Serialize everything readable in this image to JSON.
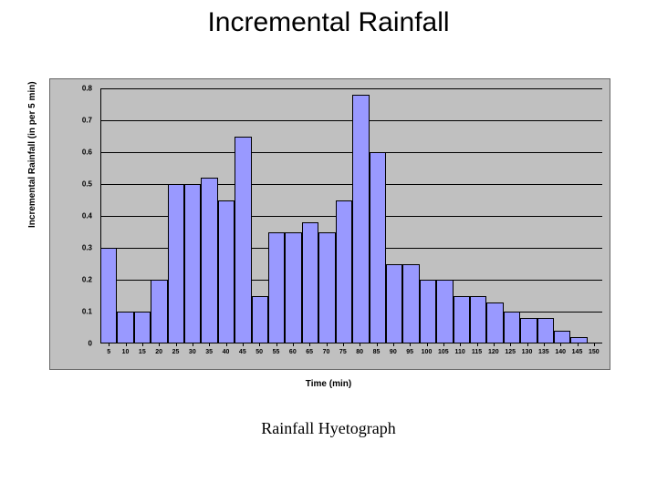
{
  "title": "Incremental Rainfall",
  "caption": "Rainfall Hyetograph",
  "chart": {
    "type": "bar",
    "xlabel": "Time (min)",
    "ylabel": "Incremental Rainfall (in per 5 min)",
    "ylim": [
      0,
      0.8
    ],
    "ytick_step": 0.1,
    "yticks": [
      "0",
      "0.1",
      "0.2",
      "0.3",
      "0.4",
      "0.5",
      "0.6",
      "0.7",
      "0.8"
    ],
    "categories": [
      "5",
      "10",
      "15",
      "20",
      "25",
      "30",
      "35",
      "40",
      "45",
      "50",
      "55",
      "60",
      "65",
      "70",
      "75",
      "80",
      "85",
      "90",
      "95",
      "100",
      "105",
      "110",
      "115",
      "120",
      "125",
      "130",
      "135",
      "140",
      "145",
      "150"
    ],
    "values": [
      0.3,
      0.1,
      0.1,
      0.2,
      0.5,
      0.5,
      0.52,
      0.45,
      0.65,
      0.15,
      0.35,
      0.35,
      0.38,
      0.35,
      0.45,
      0.78,
      0.6,
      0.25,
      0.25,
      0.2,
      0.2,
      0.15,
      0.15,
      0.13,
      0.1,
      0.08,
      0.08,
      0.04,
      0.02,
      0.0
    ],
    "bar_color": "#9999ff",
    "bar_border_color": "#000000",
    "plot_background": "#c0c0c0",
    "outer_background": "#c0c0c0",
    "grid_color": "#000000",
    "axis_color": "#000000",
    "title_fontsize": 30,
    "label_fontsize": 10,
    "tick_fontsize": 8,
    "caption_fontsize": 18,
    "bar_width": 1.0
  }
}
